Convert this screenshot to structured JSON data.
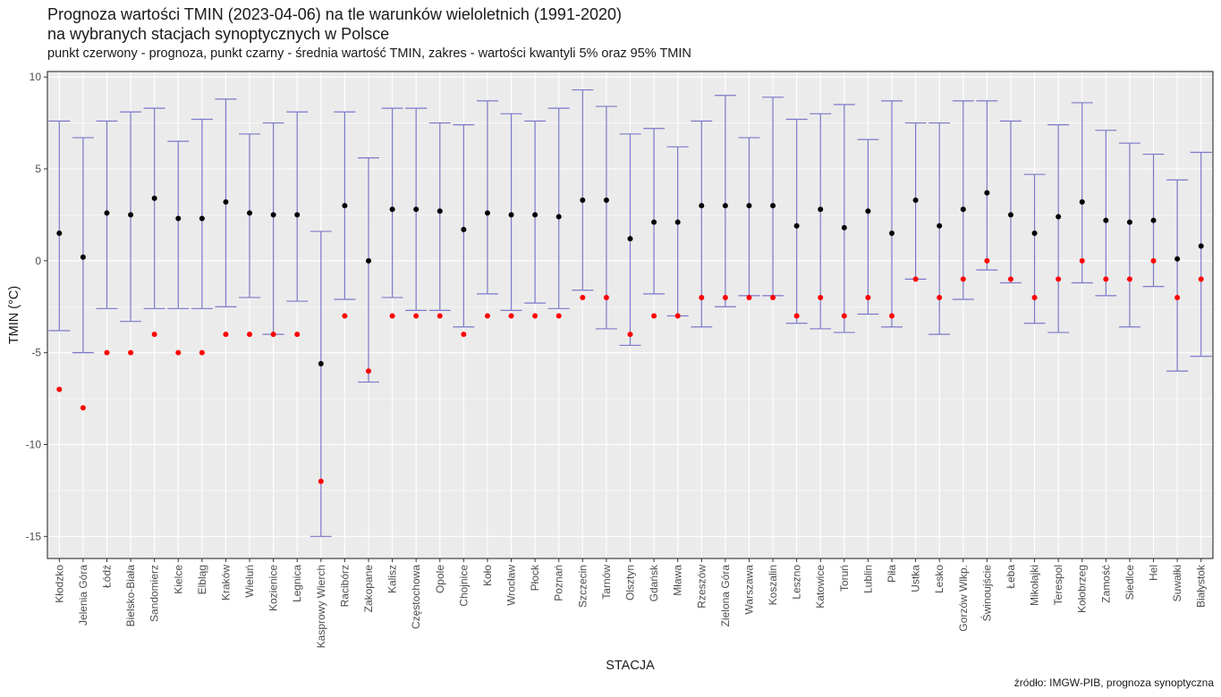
{
  "title_line1": "Prognoza wartości TMIN (2023-04-06) na tle warunków wieloletnich (1991-2020)",
  "title_line2": "na wybranych stacjach synoptycznych w Polsce",
  "subtitle": "punkt czerwony - prognoza, punkt czarny - średnia wartość TMIN, zakres - wartości kwantyli 5% oraz 95% TMIN",
  "caption": "źródło: IMGW-PIB, prognoza synoptyczna",
  "chart_data": {
    "type": "scatter",
    "xlabel": "STACJA",
    "ylabel": "TMIN (°C)",
    "ylim": [
      -16.2,
      10.3
    ],
    "yticks": [
      10,
      5,
      0,
      -5,
      -10,
      -15
    ],
    "grid": true,
    "colors": {
      "panel": "#ebebeb",
      "errorbar": "#7b79c9",
      "mean": "#000000",
      "forecast": "#ff0000"
    },
    "stations": [
      "Kłodzko",
      "Jelenia Góra",
      "Łódź",
      "Bielsko-Biała",
      "Sandomierz",
      "Kielce",
      "Elbląg",
      "Kraków",
      "Wieluń",
      "Kozienice",
      "Legnica",
      "Kasprowy Wierch",
      "Racibórz",
      "Zakopane",
      "Kalisz",
      "Częstochowa",
      "Opole",
      "Chojnice",
      "Koło",
      "Wrocław",
      "Płock",
      "Poznań",
      "Szczecin",
      "Tarnów",
      "Olsztyn",
      "Gdańsk",
      "Mława",
      "Rzeszów",
      "Zielona Góra",
      "Warszawa",
      "Koszalin",
      "Leszno",
      "Katowice",
      "Toruń",
      "Lublin",
      "Piła",
      "Ustka",
      "Lesko",
      "Gorzów Wlkp.",
      "Świnoujście",
      "Łeba",
      "Mikołajki",
      "Terespol",
      "Kołobrzeg",
      "Zamość",
      "Siedlce",
      "Hel",
      "Suwałki",
      "Białystok"
    ],
    "series": [
      {
        "name": "średnia",
        "values": [
          1.5,
          0.2,
          2.6,
          2.5,
          3.4,
          2.3,
          2.3,
          3.2,
          2.6,
          2.5,
          2.5,
          -5.6,
          3.0,
          0.0,
          2.8,
          2.8,
          2.7,
          1.7,
          2.6,
          2.5,
          2.5,
          2.4,
          3.3,
          3.3,
          1.2,
          2.1,
          2.1,
          3.0,
          3.0,
          3.0,
          3.0,
          1.9,
          2.8,
          1.8,
          2.7,
          1.5,
          3.3,
          1.9,
          2.8,
          3.7,
          2.5,
          1.5,
          2.4,
          3.2,
          2.2,
          2.1,
          2.2,
          0.1,
          0.8
        ]
      },
      {
        "name": "prognoza",
        "values": [
          -7,
          -8,
          -5,
          -5,
          -4,
          -5,
          -5,
          -4,
          -4,
          -4,
          -4,
          -12,
          -3,
          -6,
          -3,
          -3,
          -3,
          -4,
          -3,
          -3,
          -3,
          -3,
          -2,
          -2,
          -4,
          -3,
          -3,
          -2,
          -2,
          -2,
          -2,
          -3,
          -2,
          -3,
          -2,
          -3,
          -1,
          -2,
          -1,
          0,
          -1,
          -2,
          -1,
          0,
          -1,
          -1,
          0,
          -2,
          -1
        ]
      },
      {
        "name": "kwantyl 5%",
        "values": [
          -3.8,
          -5.0,
          -2.6,
          -3.3,
          -2.6,
          -2.6,
          -2.6,
          -2.5,
          -2.0,
          -4.0,
          -2.2,
          -15.0,
          -2.1,
          -6.6,
          -2.0,
          -2.7,
          -2.7,
          -3.6,
          -1.8,
          -2.7,
          -2.3,
          -2.6,
          -1.6,
          -3.7,
          -4.6,
          -1.8,
          -3.0,
          -3.6,
          -2.5,
          -1.9,
          -1.9,
          -3.4,
          -3.7,
          -3.9,
          -2.9,
          -3.6,
          -1.0,
          -4.0,
          -2.1,
          -0.5,
          -1.2,
          -3.4,
          -3.9,
          -1.2,
          -1.9,
          -3.6,
          -1.4,
          -6.0,
          -5.2
        ]
      },
      {
        "name": "kwantyl 95%",
        "values": [
          7.6,
          6.7,
          7.6,
          8.1,
          8.3,
          6.5,
          7.7,
          8.8,
          6.9,
          7.5,
          8.1,
          1.6,
          8.1,
          5.6,
          8.3,
          8.3,
          7.5,
          7.4,
          8.7,
          8.0,
          7.6,
          8.3,
          9.3,
          8.4,
          6.9,
          7.2,
          6.2,
          7.6,
          9.0,
          6.7,
          8.9,
          7.7,
          8.0,
          8.5,
          6.6,
          8.7,
          7.5,
          7.5,
          8.7,
          8.7,
          7.6,
          4.7,
          7.4,
          8.6,
          7.1,
          6.4,
          5.8,
          4.4,
          5.9
        ]
      }
    ]
  }
}
